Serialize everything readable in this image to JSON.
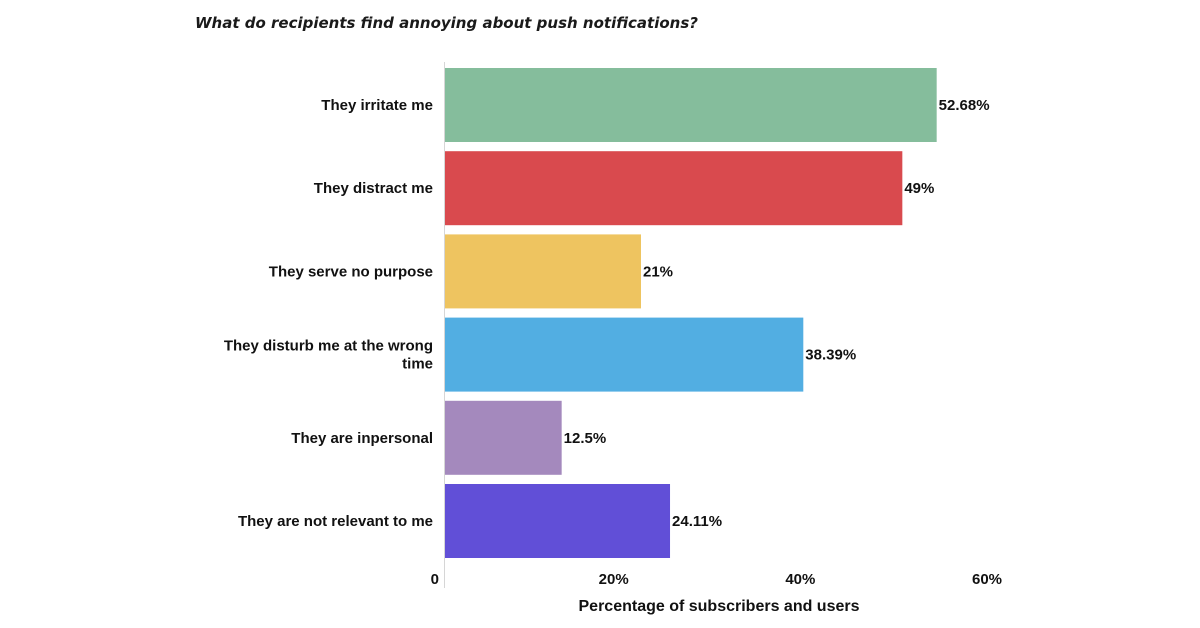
{
  "chart_data": {
    "type": "bar",
    "orientation": "horizontal",
    "title": "What do recipients find annoying about push notifications?",
    "xlabel": "Percentage of subscribers and users",
    "ylabel": "",
    "xlim": [
      0,
      60
    ],
    "grid": false,
    "legend": "none",
    "categories": [
      "They irritate me",
      "They distract me",
      "They serve no purpose",
      "They disturb me at the wrong time",
      "They are inpersonal",
      "They are not relevant to me"
    ],
    "category_lines": [
      [
        "They irritate me"
      ],
      [
        "They distract me"
      ],
      [
        "They serve no purpose"
      ],
      [
        "They disturb me at the wrong",
        "time"
      ],
      [
        "They are inpersonal"
      ],
      [
        "They are not relevant to me"
      ]
    ],
    "values": [
      52.68,
      49,
      21,
      38.39,
      12.5,
      24.11
    ],
    "value_labels": [
      "52.68%",
      "49%",
      "21%",
      "38.39%",
      "12.5%",
      "24.11%"
    ],
    "bar_colors": [
      "#85bd9c",
      "#d94a4e",
      "#eec460",
      "#52aee2",
      "#a489bd",
      "#614fd7"
    ],
    "x_ticks": [
      0,
      20,
      40,
      60
    ],
    "x_tick_labels": [
      "0",
      "20%",
      "40%",
      "60%"
    ]
  }
}
